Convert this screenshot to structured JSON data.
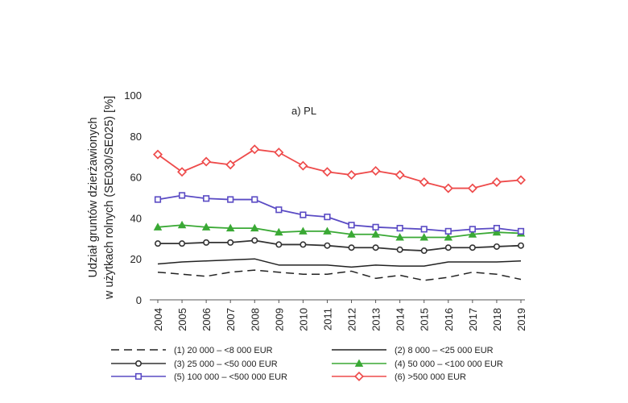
{
  "chart_data": {
    "type": "line",
    "title": "",
    "panel_label": "a) PL",
    "ylabel_lines": [
      "Udział gruntów dzierżawionych",
      "w użytkach rolnych (SE030/SE025) [%]"
    ],
    "xlabel": "",
    "ylim": [
      0,
      100
    ],
    "yticks": [
      "0",
      "20",
      "40",
      "60",
      "80",
      "100"
    ],
    "x": [
      "2004",
      "2005",
      "2006",
      "2007",
      "2008",
      "2009",
      "2010",
      "2011",
      "2012",
      "2013",
      "2014",
      "2015",
      "2016",
      "2017",
      "2018",
      "2019"
    ],
    "grid": false,
    "legend_position": "bottom",
    "series": [
      {
        "name": "(1) 20 000 – <8 000 EUR",
        "color": "#222222",
        "style": "dashed",
        "marker": "none",
        "values": [
          13.5,
          12.5,
          11.5,
          13.5,
          14.5,
          13.5,
          12.5,
          12.5,
          14.0,
          10.5,
          12.0,
          9.5,
          11.0,
          13.5,
          12.5,
          10.0
        ]
      },
      {
        "name": "(2) 8 000 – <25 000 EUR",
        "color": "#222222",
        "style": "solid",
        "marker": "none",
        "values": [
          17.5,
          18.5,
          19.0,
          19.5,
          20.0,
          17.0,
          17.0,
          17.0,
          16.0,
          17.0,
          16.5,
          16.5,
          18.5,
          18.5,
          18.5,
          19.0
        ]
      },
      {
        "name": "(3) 25 000 – <50 000 EUR",
        "color": "#333333",
        "style": "solid",
        "marker": "circle",
        "values": [
          27.5,
          27.5,
          28.0,
          28.0,
          29.0,
          27.0,
          27.0,
          26.5,
          25.5,
          25.5,
          24.5,
          24.0,
          25.5,
          25.5,
          26.0,
          26.5
        ]
      },
      {
        "name": "(4) 50 000 – <100 000 EUR",
        "color": "#3aa935",
        "style": "solid",
        "marker": "triangle",
        "values": [
          35.5,
          36.5,
          35.5,
          35.0,
          35.0,
          33.0,
          33.5,
          33.5,
          32.0,
          32.0,
          30.5,
          30.5,
          30.5,
          32.0,
          33.0,
          32.5
        ]
      },
      {
        "name": "(5) 100 000 – <500 000 EUR",
        "color": "#5a4bc4",
        "style": "solid",
        "marker": "square",
        "values": [
          49.0,
          51.0,
          49.5,
          49.0,
          49.0,
          44.0,
          41.5,
          40.5,
          36.5,
          35.5,
          35.0,
          34.5,
          33.5,
          34.5,
          35.0,
          33.5
        ]
      },
      {
        "name": "(6) >500 000 EUR",
        "color": "#ee4b4b",
        "style": "solid",
        "marker": "diamond",
        "values": [
          71.0,
          62.5,
          67.5,
          66.0,
          73.5,
          72.0,
          65.5,
          62.5,
          61.0,
          63.0,
          61.0,
          57.5,
          54.5,
          54.5,
          57.5,
          58.5
        ]
      }
    ]
  }
}
